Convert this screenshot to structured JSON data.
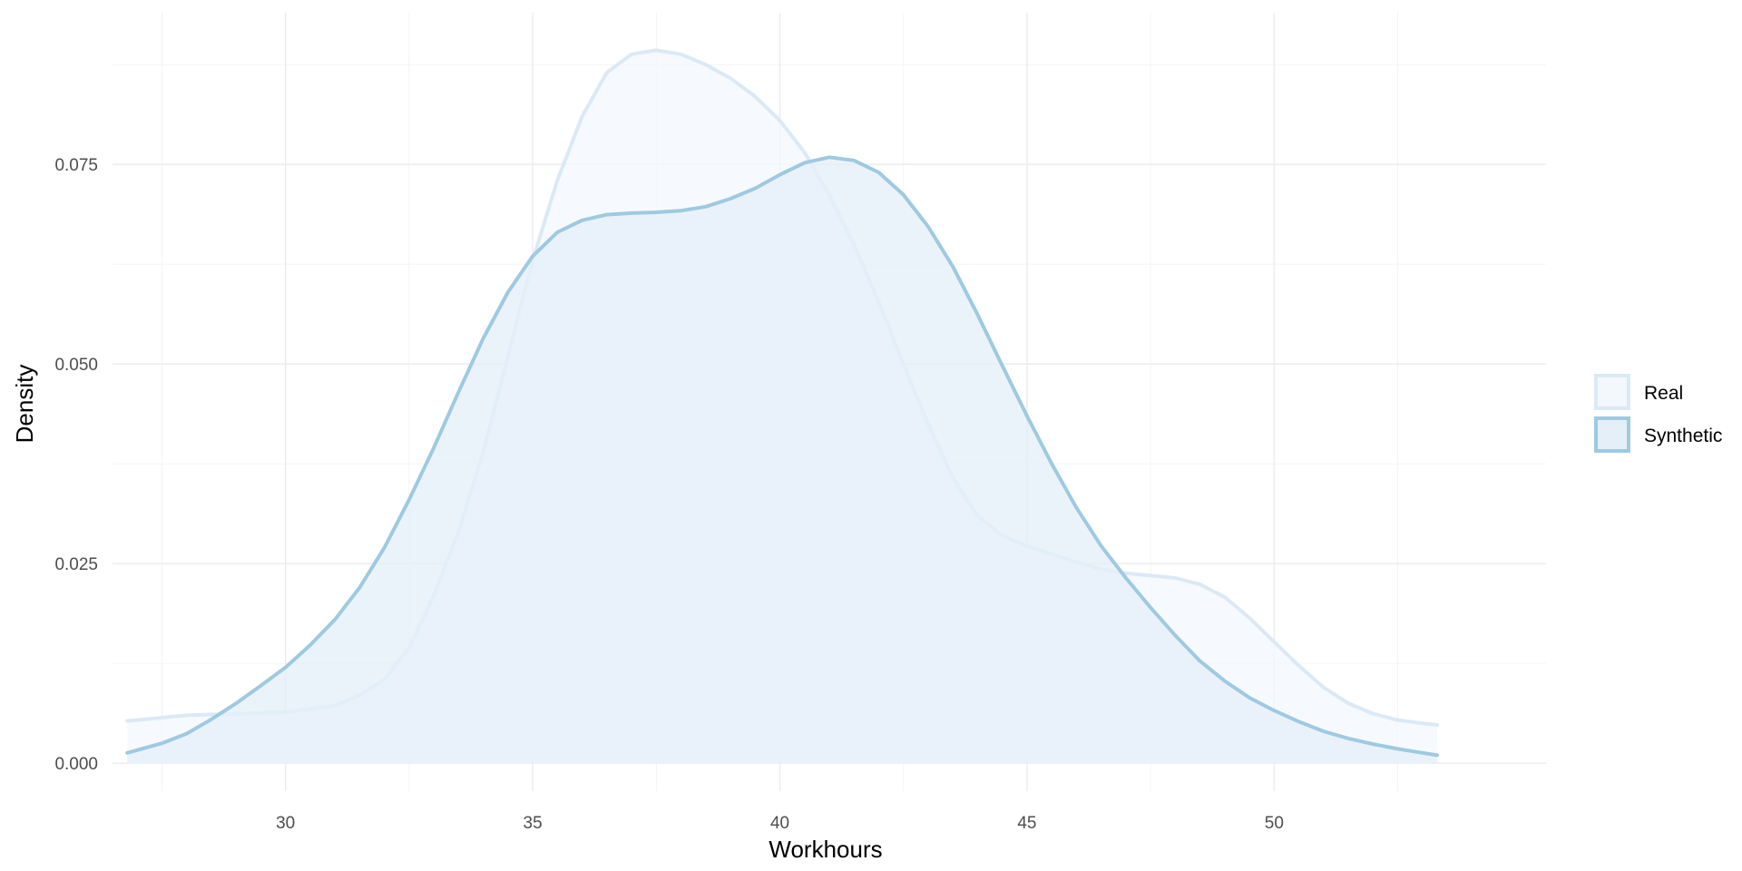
{
  "chart_data": {
    "type": "area",
    "chart_kind": "density",
    "title": "",
    "xlabel": "Workhours",
    "ylabel": "Density",
    "xlim": [
      26.5,
      55.5
    ],
    "ylim": [
      -0.0035,
      0.094
    ],
    "x_ticks": [
      30,
      35,
      40,
      45,
      50
    ],
    "y_ticks": [
      0.0,
      0.025,
      0.05,
      0.075
    ],
    "y_tick_labels": [
      "0.000",
      "0.025",
      "0.050",
      "0.075"
    ],
    "grid": true,
    "legend_position": "right",
    "series": [
      {
        "name": "Real",
        "line_color": "#dbe9f6",
        "fill_color": "#f3f8fd",
        "points": [
          [
            26.8,
            0.0053
          ],
          [
            28.0,
            0.006
          ],
          [
            29.0,
            0.0062
          ],
          [
            30.0,
            0.0064
          ],
          [
            31.0,
            0.0072
          ],
          [
            31.5,
            0.0085
          ],
          [
            32.0,
            0.0105
          ],
          [
            32.5,
            0.0145
          ],
          [
            33.0,
            0.021
          ],
          [
            33.5,
            0.029
          ],
          [
            34.0,
            0.039
          ],
          [
            34.5,
            0.051
          ],
          [
            35.0,
            0.063
          ],
          [
            35.5,
            0.073
          ],
          [
            36.0,
            0.081
          ],
          [
            36.5,
            0.0865
          ],
          [
            37.0,
            0.0888
          ],
          [
            37.5,
            0.0893
          ],
          [
            38.0,
            0.0888
          ],
          [
            38.5,
            0.0875
          ],
          [
            39.0,
            0.0858
          ],
          [
            39.5,
            0.0835
          ],
          [
            40.0,
            0.0805
          ],
          [
            40.5,
            0.0765
          ],
          [
            41.0,
            0.0712
          ],
          [
            41.5,
            0.065
          ],
          [
            42.0,
            0.0578
          ],
          [
            42.5,
            0.05
          ],
          [
            43.0,
            0.0425
          ],
          [
            43.5,
            0.0358
          ],
          [
            44.0,
            0.031
          ],
          [
            44.5,
            0.0285
          ],
          [
            45.0,
            0.0272
          ],
          [
            45.5,
            0.0262
          ],
          [
            46.0,
            0.0252
          ],
          [
            46.5,
            0.0243
          ],
          [
            47.0,
            0.0238
          ],
          [
            47.5,
            0.0235
          ],
          [
            48.0,
            0.0232
          ],
          [
            48.5,
            0.0224
          ],
          [
            49.0,
            0.0208
          ],
          [
            49.5,
            0.0182
          ],
          [
            50.0,
            0.0152
          ],
          [
            50.5,
            0.0122
          ],
          [
            51.0,
            0.0095
          ],
          [
            51.5,
            0.0075
          ],
          [
            52.0,
            0.0062
          ],
          [
            52.5,
            0.0054
          ],
          [
            53.0,
            0.005
          ],
          [
            53.3,
            0.0048
          ]
        ]
      },
      {
        "name": "Synthetic",
        "line_color": "#9ecae1",
        "fill_color": "#e4eff8",
        "points": [
          [
            26.8,
            0.0013
          ],
          [
            27.5,
            0.0025
          ],
          [
            28.0,
            0.0037
          ],
          [
            28.5,
            0.0055
          ],
          [
            29.0,
            0.0075
          ],
          [
            29.5,
            0.0097
          ],
          [
            30.0,
            0.012
          ],
          [
            30.5,
            0.0148
          ],
          [
            31.0,
            0.018
          ],
          [
            31.5,
            0.022
          ],
          [
            32.0,
            0.027
          ],
          [
            32.5,
            0.033
          ],
          [
            33.0,
            0.0395
          ],
          [
            33.5,
            0.0465
          ],
          [
            34.0,
            0.0532
          ],
          [
            34.5,
            0.059
          ],
          [
            35.0,
            0.0635
          ],
          [
            35.5,
            0.0665
          ],
          [
            36.0,
            0.068
          ],
          [
            36.5,
            0.0687
          ],
          [
            37.0,
            0.0689
          ],
          [
            37.5,
            0.069
          ],
          [
            38.0,
            0.0692
          ],
          [
            38.5,
            0.0697
          ],
          [
            39.0,
            0.0707
          ],
          [
            39.5,
            0.072
          ],
          [
            40.0,
            0.0737
          ],
          [
            40.5,
            0.0752
          ],
          [
            41.0,
            0.0759
          ],
          [
            41.5,
            0.0755
          ],
          [
            42.0,
            0.074
          ],
          [
            42.5,
            0.0712
          ],
          [
            43.0,
            0.0672
          ],
          [
            43.5,
            0.0622
          ],
          [
            44.0,
            0.0562
          ],
          [
            44.5,
            0.0498
          ],
          [
            45.0,
            0.0435
          ],
          [
            45.5,
            0.0375
          ],
          [
            46.0,
            0.032
          ],
          [
            46.5,
            0.0272
          ],
          [
            47.0,
            0.0232
          ],
          [
            47.5,
            0.0195
          ],
          [
            48.0,
            0.016
          ],
          [
            48.5,
            0.0128
          ],
          [
            49.0,
            0.0103
          ],
          [
            49.5,
            0.0082
          ],
          [
            50.0,
            0.0066
          ],
          [
            50.5,
            0.0052
          ],
          [
            51.0,
            0.004
          ],
          [
            51.5,
            0.0031
          ],
          [
            52.0,
            0.0024
          ],
          [
            52.5,
            0.0018
          ],
          [
            53.0,
            0.0013
          ],
          [
            53.3,
            0.001
          ]
        ]
      }
    ]
  }
}
